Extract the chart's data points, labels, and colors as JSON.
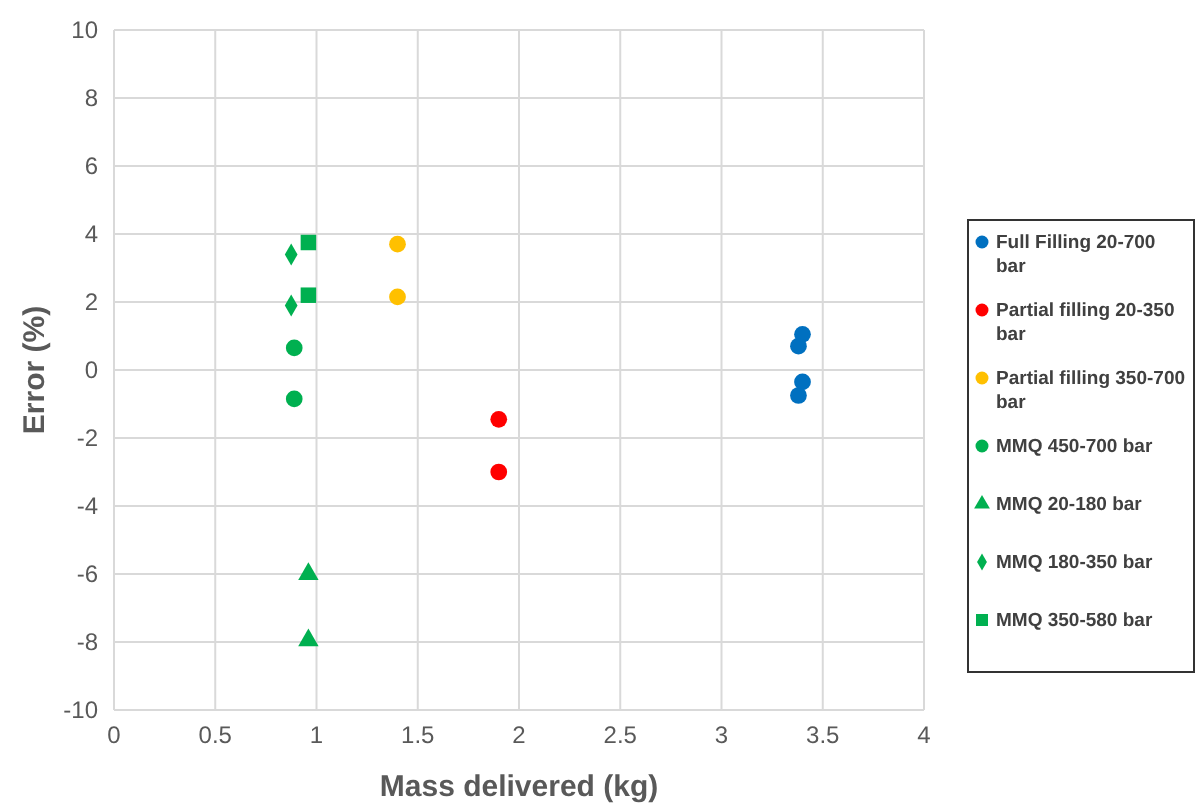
{
  "chart_data": {
    "type": "scatter",
    "xlabel": "Mass delivered (kg)",
    "ylabel": "Error (%)",
    "xlim": [
      0,
      4
    ],
    "xticks": [
      0,
      0.5,
      1,
      1.5,
      2,
      2.5,
      3,
      3.5,
      4
    ],
    "ylim": [
      -10,
      10
    ],
    "yticks": [
      -10,
      -8,
      -6,
      -4,
      -2,
      0,
      2,
      4,
      6,
      8,
      10
    ],
    "grid": true,
    "legend": "right",
    "series": [
      {
        "name": "Full Filling 20-700 bar",
        "color": "#0070c0",
        "marker": "circle",
        "x": [
          3.4,
          3.38,
          3.4,
          3.38
        ],
        "values": [
          1.05,
          0.7,
          -0.35,
          -0.75
        ]
      },
      {
        "name": "Partial filling 20-350 bar",
        "color": "#ff0000",
        "marker": "circle",
        "x": [
          1.9,
          1.9
        ],
        "values": [
          -1.45,
          -3.0
        ]
      },
      {
        "name": "Partial filling 350-700 bar",
        "color": "#ffc000",
        "marker": "circle",
        "x": [
          1.4,
          1.4
        ],
        "values": [
          3.7,
          2.15
        ]
      },
      {
        "name": "MMQ 450-700 bar",
        "color": "#00b050",
        "marker": "circle",
        "x": [
          0.89,
          0.89
        ],
        "values": [
          0.65,
          -0.85
        ]
      },
      {
        "name": "MMQ 20-180 bar",
        "color": "#00b050",
        "marker": "triangle",
        "x": [
          0.96,
          0.96
        ],
        "values": [
          -6.0,
          -7.95
        ]
      },
      {
        "name": "MMQ 180-350 bar",
        "color": "#00b050",
        "marker": "diamond",
        "x": [
          0.875,
          0.875
        ],
        "values": [
          3.4,
          1.9
        ]
      },
      {
        "name": "MMQ 350-580 bar",
        "color": "#00b050",
        "marker": "square",
        "x": [
          0.96,
          0.96
        ],
        "values": [
          3.75,
          2.2
        ]
      }
    ]
  }
}
